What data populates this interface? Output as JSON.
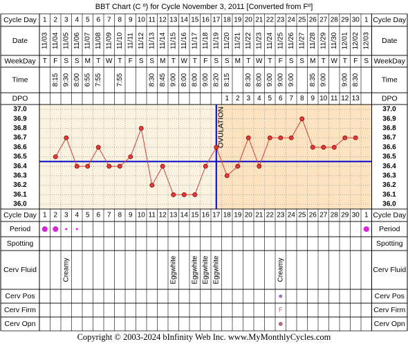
{
  "chart_data": {
    "type": "line",
    "title": "BBT Chart (C º) for Cycle November 3, 2011  [Converted from Fº]",
    "row_labels": {
      "cycle_day": "Cycle Day",
      "date": "Date",
      "weekday": "WeekDay",
      "time": "Time",
      "dpo": "DPO",
      "period": "Period",
      "spotting": "Spotting",
      "cervical_fluid": "Cerv Fluid",
      "cervix_position": "Cerv Pos",
      "cervix_firmness": "Cerv Firm",
      "cervix_opening": "Cerv Opn"
    },
    "cycle_days": [
      1,
      2,
      3,
      4,
      5,
      6,
      7,
      8,
      9,
      10,
      11,
      12,
      13,
      14,
      15,
      16,
      17,
      18,
      19,
      20,
      21,
      22,
      23,
      24,
      25,
      26,
      27,
      28,
      29,
      30,
      1
    ],
    "categories": [
      "11/03",
      "11/04",
      "11/05",
      "11/06",
      "11/07",
      "11/08",
      "11/09",
      "11/10",
      "11/11",
      "11/12",
      "11/13",
      "11/14",
      "11/15",
      "11/16",
      "11/17",
      "11/18",
      "11/19",
      "11/20",
      "11/21",
      "11/22",
      "11/23",
      "11/24",
      "11/25",
      "11/26",
      "11/27",
      "11/28",
      "11/29",
      "11/30",
      "12/01",
      "12/02",
      "12/03"
    ],
    "weekdays": [
      "T",
      "F",
      "S",
      "S",
      "M",
      "T",
      "W",
      "T",
      "F",
      "S",
      "S",
      "M",
      "T",
      "W",
      "T",
      "F",
      "S",
      "S",
      "M",
      "T",
      "W",
      "T",
      "F",
      "S",
      "S",
      "M",
      "T",
      "W",
      "T",
      "F",
      "S"
    ],
    "times": [
      null,
      "8:15",
      "9:30",
      "8:00",
      "6:55",
      "7:55",
      null,
      "7:55",
      null,
      null,
      "8:30",
      "8:45",
      "9:00",
      "8:00",
      "8:00",
      "9:00",
      "8:20",
      "8:15",
      null,
      "8:30",
      "8:00",
      "9:00",
      "9:00",
      "9:00",
      null,
      "8:35",
      "9:00",
      null,
      "9:00",
      "8:30",
      null
    ],
    "dpo": [
      null,
      null,
      null,
      null,
      null,
      null,
      null,
      null,
      null,
      null,
      null,
      null,
      null,
      null,
      null,
      null,
      null,
      1,
      2,
      3,
      4,
      5,
      6,
      7,
      8,
      9,
      10,
      11,
      12,
      13,
      null
    ],
    "values": [
      null,
      36.5,
      36.7,
      36.4,
      36.4,
      36.6,
      36.4,
      36.4,
      36.5,
      36.8,
      36.2,
      36.4,
      36.1,
      36.1,
      36.1,
      36.4,
      36.6,
      36.3,
      36.4,
      36.7,
      36.4,
      36.7,
      36.7,
      36.7,
      36.9,
      36.6,
      36.6,
      36.6,
      36.7,
      36.7,
      null
    ],
    "color": "#e03c3c",
    "ylim": [
      36.0,
      37.0
    ],
    "yticks": [
      {
        "value": 37.0,
        "label": "37.0"
      },
      {
        "value": 36.9,
        "label": "36.9"
      },
      {
        "value": 36.8,
        "label": "36.8"
      },
      {
        "value": 36.7,
        "label": "36.7"
      },
      {
        "value": 36.6,
        "label": "36.6"
      },
      {
        "value": 36.5,
        "label": "36.5"
      },
      {
        "value": 36.4,
        "label": "36.4"
      },
      {
        "value": 36.3,
        "label": "36.3"
      },
      {
        "value": 36.2,
        "label": "36.2"
      },
      {
        "value": 36.1,
        "label": "36.1"
      },
      {
        "value": 36.0,
        "label": "36.0"
      }
    ],
    "grid": true,
    "coverline": {
      "value": 36.45,
      "color": "#0000cc"
    },
    "ovulation": {
      "label": "OVULATION",
      "cycle_day": 17,
      "color": "#0000cc"
    },
    "period": [
      2,
      2,
      1,
      1,
      null,
      null,
      null,
      null,
      null,
      null,
      null,
      null,
      null,
      null,
      null,
      null,
      null,
      null,
      null,
      null,
      null,
      null,
      null,
      null,
      null,
      null,
      null,
      null,
      null,
      null,
      2
    ],
    "period_color": "#e020e0",
    "cervical_fluid": [
      null,
      null,
      "Creamy",
      null,
      null,
      null,
      null,
      null,
      null,
      null,
      null,
      null,
      "Eggwhite",
      null,
      "Eggwhite",
      "Eggwhite",
      "Eggwhite",
      null,
      null,
      null,
      null,
      null,
      "Creamy",
      null,
      null,
      null,
      null,
      null,
      null,
      null,
      null
    ],
    "cervix_position": [
      null,
      null,
      null,
      null,
      null,
      null,
      null,
      null,
      null,
      null,
      null,
      null,
      null,
      null,
      null,
      null,
      null,
      null,
      null,
      null,
      null,
      null,
      1,
      null,
      null,
      null,
      null,
      null,
      null,
      null,
      null
    ],
    "cervix_firmness": [
      null,
      null,
      null,
      null,
      null,
      null,
      null,
      null,
      null,
      null,
      null,
      null,
      null,
      null,
      null,
      null,
      null,
      null,
      null,
      null,
      null,
      null,
      "F",
      null,
      null,
      null,
      null,
      null,
      null,
      null,
      null
    ],
    "cervix_opening": [
      null,
      null,
      null,
      null,
      null,
      null,
      null,
      null,
      null,
      null,
      null,
      null,
      null,
      null,
      null,
      null,
      null,
      null,
      null,
      null,
      null,
      null,
      1,
      null,
      null,
      null,
      null,
      null,
      null,
      null,
      null
    ],
    "copyright": "Copyright © 2003-2024 bInfinity Web Inc.    www.MyMonthlyCycles.com"
  }
}
